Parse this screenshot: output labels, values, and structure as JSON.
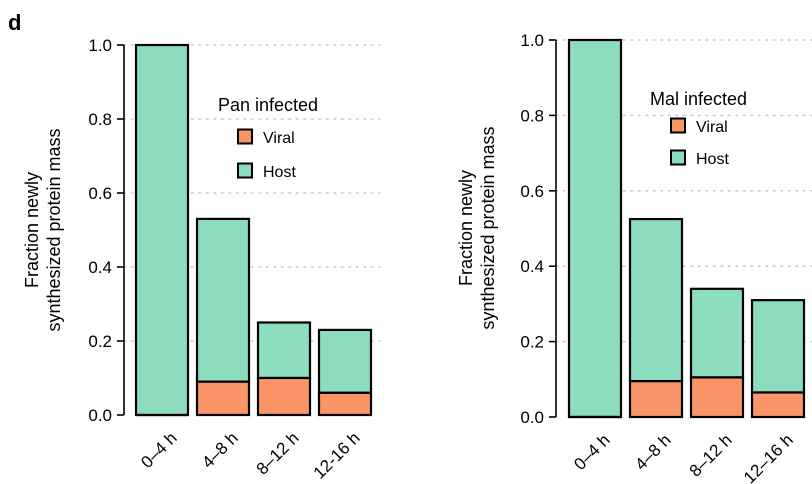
{
  "panel_label": "d",
  "colors": {
    "viral": "#f99566",
    "host": "#8cdcbe",
    "outline": "#000000",
    "grid": "#c8c8c8"
  },
  "chart_data": [
    {
      "type": "bar",
      "stacked": true,
      "categories": [
        "0–4 h",
        "4–8 h",
        "8–12 h",
        "12-16 h"
      ],
      "series": [
        {
          "name": "Viral",
          "values": [
            0.0,
            0.09,
            0.1,
            0.06
          ]
        },
        {
          "name": "Host",
          "values": [
            1.0,
            0.44,
            0.15,
            0.17
          ]
        }
      ],
      "totals": [
        1.0,
        0.53,
        0.25,
        0.23
      ],
      "legend_title": "Pan infected",
      "ylabel": [
        "Fraction newly",
        "synthesized protein mass"
      ],
      "ylim": [
        0,
        1.0
      ],
      "yticks": [
        "0.0",
        "0.2",
        "0.4",
        "0.6",
        "0.8",
        "1.0"
      ],
      "grid": "horizontal dotted",
      "legend_placement": "top-right"
    },
    {
      "type": "bar",
      "stacked": true,
      "categories": [
        "0–4 h",
        "4–8 h",
        "8–12 h",
        "12–16 h"
      ],
      "series": [
        {
          "name": "Viral",
          "values": [
            0.0,
            0.095,
            0.105,
            0.065
          ]
        },
        {
          "name": "Host",
          "values": [
            1.0,
            0.43,
            0.235,
            0.245
          ]
        }
      ],
      "totals": [
        1.0,
        0.525,
        0.34,
        0.31
      ],
      "legend_title": "Mal infected",
      "ylabel": [
        "Fraction newly",
        "synthesized protein mass"
      ],
      "ylim": [
        0,
        1.0
      ],
      "yticks": [
        "0.0",
        "0.2",
        "0.4",
        "0.6",
        "0.8",
        "1.0"
      ],
      "grid": "horizontal dotted",
      "legend_placement": "top-right"
    }
  ]
}
